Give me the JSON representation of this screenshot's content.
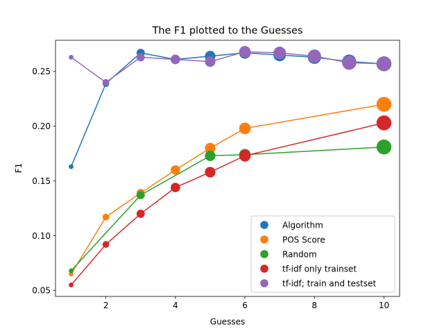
{
  "chart_data": {
    "type": "scatter",
    "title": "The F1 plotted to the Guesses",
    "xlabel": "Guesses",
    "ylabel": "F1",
    "xlim": [
      0.55,
      10.45
    ],
    "ylim": [
      0.0445,
      0.2785
    ],
    "xticks": [
      2,
      4,
      6,
      8,
      10
    ],
    "yticks": [
      0.05,
      0.1,
      0.15,
      0.2,
      0.25
    ],
    "xtick_labels": [
      "2",
      "4",
      "6",
      "8",
      "10"
    ],
    "ytick_labels": [
      "0.05",
      "0.10",
      "0.15",
      "0.20",
      "0.25"
    ],
    "grid": false,
    "legend_position": "lower-right",
    "series": [
      {
        "name": "Algorithm",
        "color": "#1f77b4",
        "x": [
          1,
          2,
          3,
          4,
          5,
          6,
          7,
          8,
          9,
          10
        ],
        "y": [
          0.163,
          0.239,
          0.267,
          0.261,
          0.264,
          0.267,
          0.265,
          0.263,
          0.259,
          0.257
        ]
      },
      {
        "name": "POS Score",
        "color": "#ff7f0e",
        "x": [
          1,
          2,
          3,
          4,
          5,
          6,
          10
        ],
        "y": [
          0.065,
          0.117,
          0.139,
          0.16,
          0.18,
          0.198,
          0.22
        ]
      },
      {
        "name": "Random",
        "color": "#2ca02c",
        "x": [
          1,
          3,
          5,
          6,
          10
        ],
        "y": [
          0.068,
          0.137,
          0.173,
          0.174,
          0.181
        ]
      },
      {
        "name": "tf-idf only trainset",
        "color": "#d62728",
        "x": [
          1,
          2,
          3,
          4,
          5,
          6,
          10
        ],
        "y": [
          0.055,
          0.092,
          0.12,
          0.144,
          0.158,
          0.173,
          0.203
        ]
      },
      {
        "name": "tf-idf; train and testset",
        "color": "#9467bd",
        "x": [
          1,
          2,
          3,
          4,
          5,
          6,
          7,
          8,
          9,
          10
        ],
        "y": [
          0.263,
          0.24,
          0.263,
          0.261,
          0.259,
          0.268,
          0.267,
          0.264,
          0.258,
          0.257
        ]
      }
    ]
  }
}
